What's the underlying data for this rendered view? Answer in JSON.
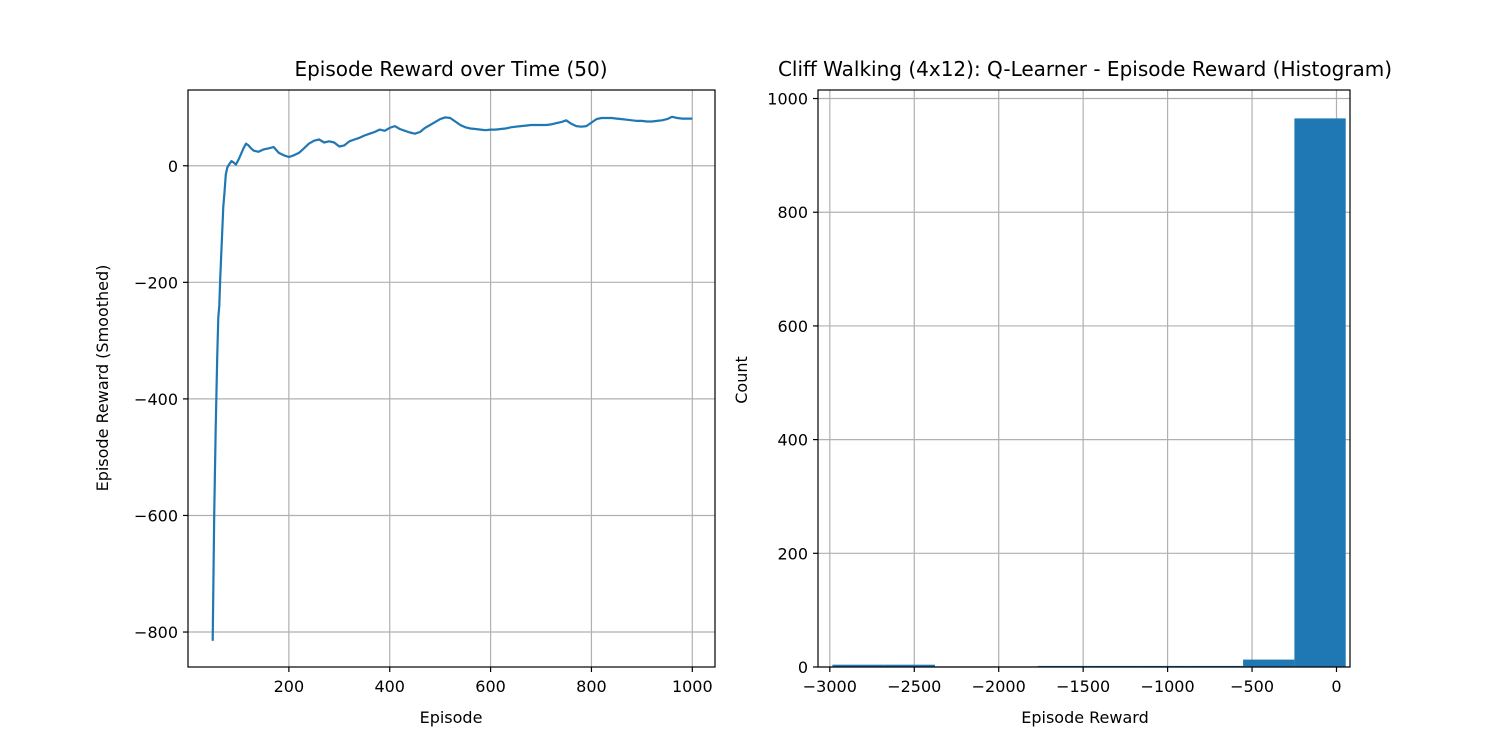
{
  "chart_data": [
    {
      "type": "line",
      "title": "Episode Reward over Time (50)",
      "xlabel": "Episode",
      "ylabel": "Episode Reward (Smoothed)",
      "xlim": [
        0,
        1045
      ],
      "ylim": [
        -860,
        130
      ],
      "xticks": [
        200,
        400,
        600,
        800,
        1000
      ],
      "xtick_labels": [
        "200",
        "400",
        "600",
        "800",
        "1000"
      ],
      "yticks": [
        0,
        -200,
        -400,
        -600,
        -800
      ],
      "ytick_labels": [
        "0",
        "−200",
        "−400",
        "−600",
        "−800"
      ],
      "grid": true,
      "color": "#1f77b4",
      "series": [
        {
          "x": [
            49,
            52,
            55,
            58,
            60,
            62,
            64,
            66,
            68,
            70,
            72,
            75,
            78,
            82,
            86,
            90,
            95,
            100,
            105,
            110,
            115,
            120,
            125,
            130,
            140,
            150,
            160,
            170,
            180,
            190,
            200,
            210,
            220,
            230,
            240,
            250,
            260,
            270,
            280,
            290,
            300,
            310,
            320,
            330,
            340,
            350,
            360,
            370,
            380,
            390,
            400,
            410,
            420,
            430,
            440,
            450,
            460,
            470,
            480,
            490,
            500,
            510,
            520,
            530,
            540,
            550,
            560,
            570,
            580,
            590,
            600,
            610,
            620,
            630,
            640,
            650,
            660,
            670,
            680,
            690,
            700,
            710,
            720,
            730,
            740,
            750,
            760,
            770,
            780,
            790,
            800,
            810,
            820,
            830,
            840,
            850,
            860,
            870,
            880,
            890,
            900,
            910,
            920,
            930,
            940,
            950,
            960,
            970,
            980,
            990,
            1000
          ],
          "y": [
            -815,
            -600,
            -450,
            -330,
            -260,
            -240,
            -190,
            -150,
            -110,
            -70,
            -50,
            -15,
            -3,
            3,
            8,
            6,
            2,
            10,
            20,
            30,
            38,
            35,
            30,
            26,
            24,
            28,
            30,
            32,
            22,
            18,
            15,
            18,
            22,
            30,
            38,
            43,
            45,
            40,
            42,
            40,
            33,
            35,
            42,
            45,
            48,
            52,
            55,
            58,
            62,
            60,
            65,
            68,
            63,
            60,
            57,
            55,
            58,
            65,
            70,
            75,
            80,
            83,
            82,
            76,
            70,
            66,
            64,
            63,
            62,
            61,
            62,
            62,
            63,
            64,
            66,
            67,
            68,
            69,
            70,
            70,
            70,
            70,
            71,
            73,
            75,
            78,
            72,
            68,
            67,
            68,
            74,
            80,
            82,
            82,
            82,
            81,
            80,
            79,
            78,
            77,
            77,
            76,
            76,
            77,
            78,
            80,
            84,
            82,
            81,
            81,
            81
          ]
        }
      ]
    },
    {
      "type": "bar",
      "title": "Cliff Walking (4x12): Q-Learner - Episode Reward (Histogram)",
      "xlabel": "Episode Reward",
      "ylabel": "Count",
      "xlim": [
        -3070,
        80
      ],
      "ylim": [
        0,
        1015
      ],
      "xticks": [
        -3000,
        -2500,
        -2000,
        -1500,
        -1000,
        -500,
        0
      ],
      "xtick_labels": [
        "−3000",
        "−2500",
        "−2000",
        "−1500",
        "−1000",
        "−500",
        "0"
      ],
      "yticks": [
        0,
        200,
        400,
        600,
        800,
        1000
      ],
      "ytick_labels": [
        "0",
        "200",
        "400",
        "600",
        "800",
        "1000"
      ],
      "grid": true,
      "color": "#1f77b4",
      "bin_edges": [
        -2985,
        -2681,
        -2377,
        -2073,
        -1769,
        -1465,
        -1161,
        -857,
        -553,
        -249,
        55
      ],
      "counts": [
        4,
        4,
        1,
        1,
        2,
        2,
        2,
        2,
        13,
        965
      ]
    }
  ]
}
